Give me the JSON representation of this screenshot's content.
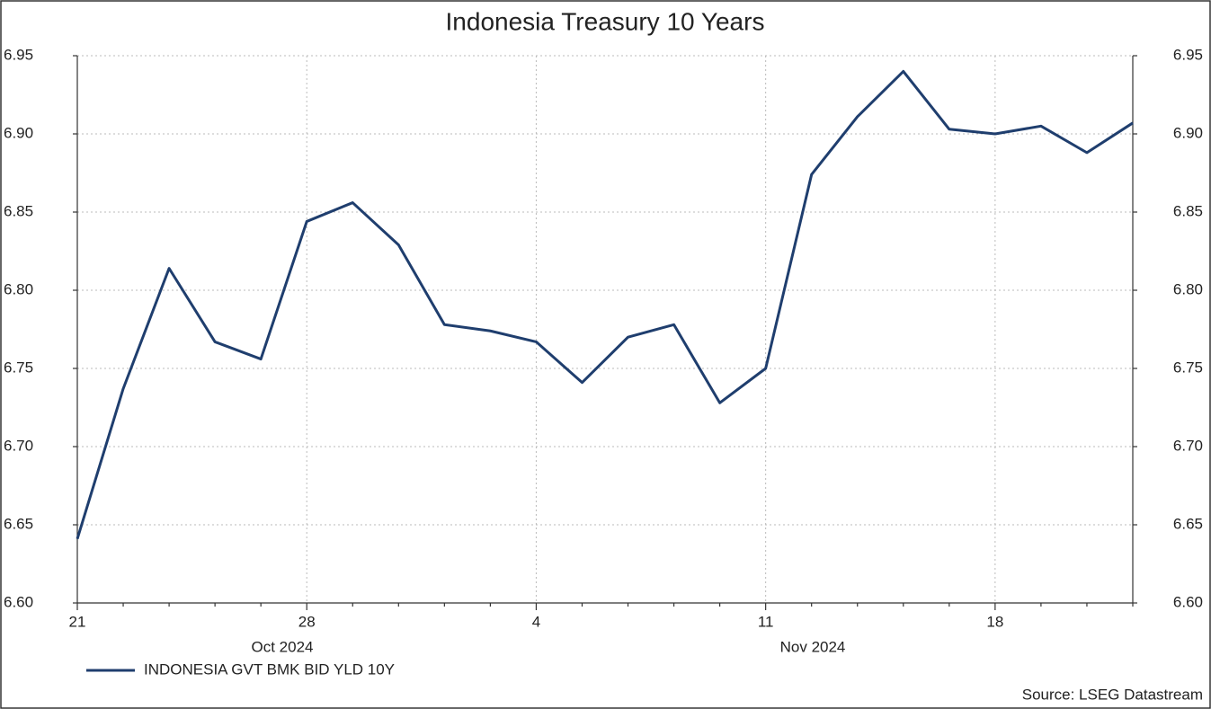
{
  "chart_data": {
    "type": "line",
    "title": "Indonesia Treasury 10 Years",
    "categories": [
      "21",
      null,
      null,
      null,
      null,
      "28",
      null,
      null,
      null,
      null,
      "4",
      null,
      null,
      null,
      null,
      "11",
      null,
      null,
      null,
      null,
      "18",
      null,
      null,
      null
    ],
    "month_labels": [
      "Oct 2024",
      "Nov 2024"
    ],
    "series": [
      {
        "name": "INDONESIA GVT BMK BID YLD 10Y",
        "color": "#1f3e6e",
        "values": [
          6.641,
          6.737,
          6.814,
          6.767,
          6.756,
          6.844,
          6.856,
          6.829,
          6.778,
          6.774,
          6.767,
          6.741,
          6.77,
          6.778,
          6.728,
          6.75,
          6.874,
          6.911,
          6.94,
          6.903,
          6.9,
          6.905,
          6.888,
          6.907
        ]
      }
    ],
    "ylim": [
      6.6,
      6.95
    ],
    "yticks": [
      {
        "value": 6.6,
        "label": "6.60"
      },
      {
        "value": 6.65,
        "label": "6.65"
      },
      {
        "value": 6.7,
        "label": "6.70"
      },
      {
        "value": 6.75,
        "label": "6.75"
      },
      {
        "value": 6.8,
        "label": "6.80"
      },
      {
        "value": 6.85,
        "label": "6.85"
      },
      {
        "value": 6.9,
        "label": "6.90"
      },
      {
        "value": 6.95,
        "label": "6.95"
      }
    ],
    "grid": true,
    "legend": "bottom-left",
    "source": "Source: LSEG Datastream"
  }
}
